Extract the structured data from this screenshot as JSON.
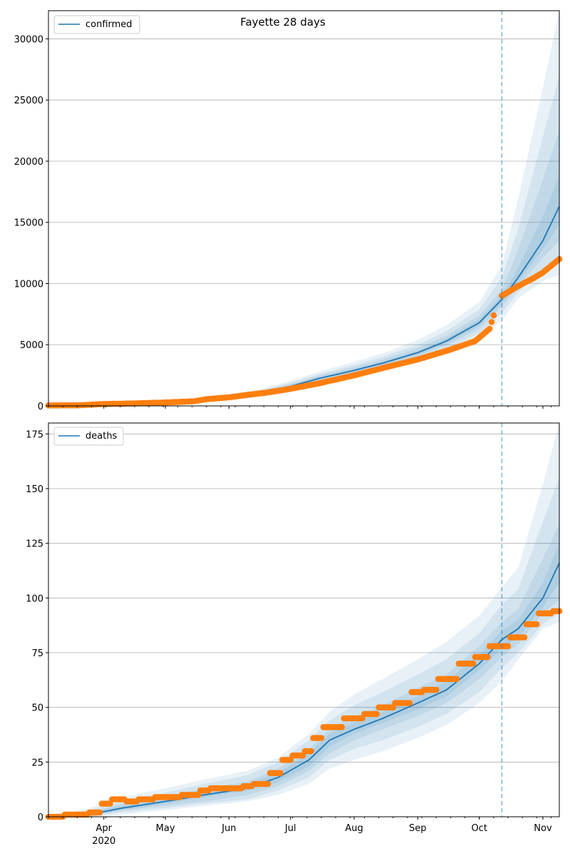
{
  "figure": {
    "title": "Fayette 28 days"
  },
  "x_axis": {
    "start": "2020-03-05",
    "end": "2020-11-09",
    "tick_labels": [
      {
        "date": "2020-04-01",
        "label": "Apr",
        "sublabel": "2020"
      },
      {
        "date": "2020-05-01",
        "label": "May"
      },
      {
        "date": "2020-06-01",
        "label": "Jun"
      },
      {
        "date": "2020-07-01",
        "label": "Jul"
      },
      {
        "date": "2020-08-01",
        "label": "Aug"
      },
      {
        "date": "2020-09-01",
        "label": "Sep"
      },
      {
        "date": "2020-10-01",
        "label": "Oct"
      },
      {
        "date": "2020-11-01",
        "label": "Nov"
      }
    ],
    "forecast_start": "2020-10-12"
  },
  "colors": {
    "model": "#1f77b4",
    "observed": "#ff7f0e",
    "band": "#1f77b4",
    "grid": "#b0b0b0",
    "forecast_line": "#1f77b4"
  },
  "chart_data": [
    {
      "type": "line",
      "panel": "top",
      "legend": "confirmed",
      "legend_position": "top-left",
      "ylim": [
        0,
        32300
      ],
      "yticks": [
        0,
        5000,
        10000,
        15000,
        20000,
        25000,
        30000
      ],
      "grid": "horizontal",
      "model": {
        "dates": [
          "2020-03-05",
          "2020-04-01",
          "2020-05-01",
          "2020-06-01",
          "2020-06-15",
          "2020-07-01",
          "2020-07-15",
          "2020-08-01",
          "2020-08-15",
          "2020-09-01",
          "2020-09-15",
          "2020-10-01",
          "2020-10-12",
          "2020-10-20",
          "2020-11-01",
          "2020-11-09"
        ],
        "median": [
          0,
          100,
          250,
          750,
          1050,
          1600,
          2250,
          2900,
          3500,
          4350,
          5300,
          6800,
          8700,
          10500,
          13500,
          16300
        ],
        "bands": [
          {
            "low": [
              0,
              80,
              200,
              600,
              850,
              1300,
              1850,
              2400,
              2900,
              3600,
              4350,
              5500,
              7000,
              8800,
              10200,
              10700
            ],
            "high": [
              0,
              130,
              320,
              950,
              1300,
              2050,
              2800,
              3600,
              4300,
              5400,
              6600,
              8500,
              11500,
              17000,
              26000,
              32300
            ]
          },
          {
            "low": [
              0,
              85,
              215,
              640,
              900,
              1380,
              1950,
              2550,
              3080,
              3830,
              4650,
              5950,
              7600,
              9300,
              11200,
              12000
            ],
            "high": [
              0,
              120,
              300,
              880,
              1220,
              1900,
              2600,
              3350,
              4020,
              5000,
              6100,
              7900,
              10500,
              14500,
              22000,
              27000
            ]
          },
          {
            "low": [
              0,
              90,
              228,
              680,
              960,
              1460,
              2060,
              2690,
              3250,
              4050,
              4940,
              6320,
              8100,
              9800,
              12100,
              13500
            ],
            "high": [
              0,
              113,
              282,
              830,
              1160,
              1780,
              2480,
              3170,
              3800,
              4730,
              5750,
              7380,
              9500,
              12800,
              18500,
              22500
            ]
          },
          {
            "low": [
              0,
              95,
              240,
              710,
              1000,
              1530,
              2150,
              2800,
              3380,
              4200,
              5120,
              6550,
              8400,
              10200,
              12800,
              14800
            ],
            "high": [
              0,
              106,
              265,
              790,
              1100,
              1680,
              2350,
              3000,
              3620,
              4500,
              5480,
              7050,
              9000,
              11300,
              15500,
              18800
            ]
          }
        ]
      },
      "observed": {
        "dates": [
          "2020-03-05",
          "2020-03-20",
          "2020-03-31",
          "2020-04-15",
          "2020-05-01",
          "2020-05-15",
          "2020-05-21",
          "2020-06-01",
          "2020-06-10",
          "2020-06-20",
          "2020-07-01",
          "2020-07-15",
          "2020-08-01",
          "2020-08-15",
          "2020-09-01",
          "2020-09-15",
          "2020-09-29",
          "2020-10-06",
          "2020-10-08",
          "2020-10-12",
          "2020-10-20",
          "2020-10-27",
          "2020-11-01",
          "2020-11-09"
        ],
        "values": [
          40,
          50,
          150,
          200,
          280,
          380,
          550,
          700,
          900,
          1100,
          1400,
          1850,
          2500,
          3100,
          3800,
          4500,
          5300,
          6300,
          7400,
          9000,
          9800,
          10400,
          10900,
          12000
        ],
        "gap_after_index": 18
      }
    },
    {
      "type": "line",
      "panel": "bottom",
      "legend": "deaths",
      "legend_position": "top-left",
      "ylim": [
        0,
        180
      ],
      "yticks": [
        0,
        25,
        50,
        75,
        100,
        125,
        150,
        175
      ],
      "grid": "horizontal",
      "model": {
        "dates": [
          "2020-03-05",
          "2020-03-25",
          "2020-04-10",
          "2020-05-01",
          "2020-05-20",
          "2020-06-10",
          "2020-06-25",
          "2020-07-10",
          "2020-07-20",
          "2020-08-01",
          "2020-08-15",
          "2020-09-01",
          "2020-09-15",
          "2020-10-01",
          "2020-10-12",
          "2020-10-20",
          "2020-11-01",
          "2020-11-09"
        ],
        "median": [
          0,
          1,
          4,
          7,
          10,
          13,
          18,
          26,
          35,
          40,
          45,
          52,
          58,
          70,
          81,
          86,
          100,
          116
        ],
        "bands": [
          {
            "low": [
              0,
              0,
              1,
              3,
              5,
              7,
              10,
              15,
              22,
              26,
              30,
              36,
              42,
              52,
              62,
              72,
              86,
              89
            ],
            "high": [
              0,
              4,
              9,
              13,
              17,
              21,
              27,
              38,
              48,
              56,
              63,
              72,
              80,
              92,
              105,
              114,
              152,
              180
            ]
          },
          {
            "low": [
              0,
              0,
              2,
              4,
              6,
              8,
              12,
              18,
              26,
              31,
              35,
              41,
              47,
              57,
              68,
              75,
              88,
              93
            ],
            "high": [
              0,
              3,
              7,
              11,
              15,
              19,
              25,
              35,
              44,
              51,
              57,
              65,
              72,
              84,
              97,
              104,
              135,
              155
            ]
          },
          {
            "low": [
              0,
              0,
              3,
              5,
              7,
              10,
              14,
              21,
              29,
              35,
              40,
              46,
              52,
              63,
              73,
              79,
              93,
              99
            ],
            "high": [
              0,
              2,
              6,
              9,
              13,
              16,
              22,
              31,
              40,
              46,
              51,
              59,
              65,
              78,
              89,
              95,
              118,
              134
            ]
          },
          {
            "low": [
              0,
              1,
              3,
              6,
              9,
              12,
              16,
              23,
              32,
              38,
              43,
              49,
              55,
              67,
              77,
              82,
              96,
              107
            ],
            "high": [
              0,
              2,
              5,
              8,
              12,
              15,
              20,
              29,
              38,
              43,
              48,
              55,
              62,
              74,
              85,
              90,
              107,
              125
            ]
          }
        ]
      },
      "observed": {
        "dates": [
          "2020-03-05",
          "2020-03-20",
          "2020-03-28",
          "2020-04-02",
          "2020-04-07",
          "2020-04-15",
          "2020-04-20",
          "2020-05-01",
          "2020-05-15",
          "2020-05-20",
          "2020-05-25",
          "2020-06-05",
          "2020-06-10",
          "2020-06-15",
          "2020-06-25",
          "2020-06-28",
          "2020-07-05",
          "2020-07-10",
          "2020-07-12",
          "2020-07-20",
          "2020-08-01",
          "2020-08-10",
          "2020-08-15",
          "2020-08-25",
          "2020-09-01",
          "2020-09-05",
          "2020-09-15",
          "2020-09-25",
          "2020-10-01",
          "2020-10-10",
          "2020-10-20",
          "2020-10-27",
          "2020-11-01",
          "2020-11-09"
        ],
        "values": [
          0,
          1,
          2,
          6,
          8,
          7,
          8,
          9,
          10,
          12,
          13,
          13,
          14,
          15,
          20,
          26,
          28,
          30,
          36,
          41,
          45,
          47,
          50,
          52,
          57,
          58,
          63,
          70,
          73,
          78,
          82,
          88,
          93,
          94
        ]
      }
    }
  ]
}
